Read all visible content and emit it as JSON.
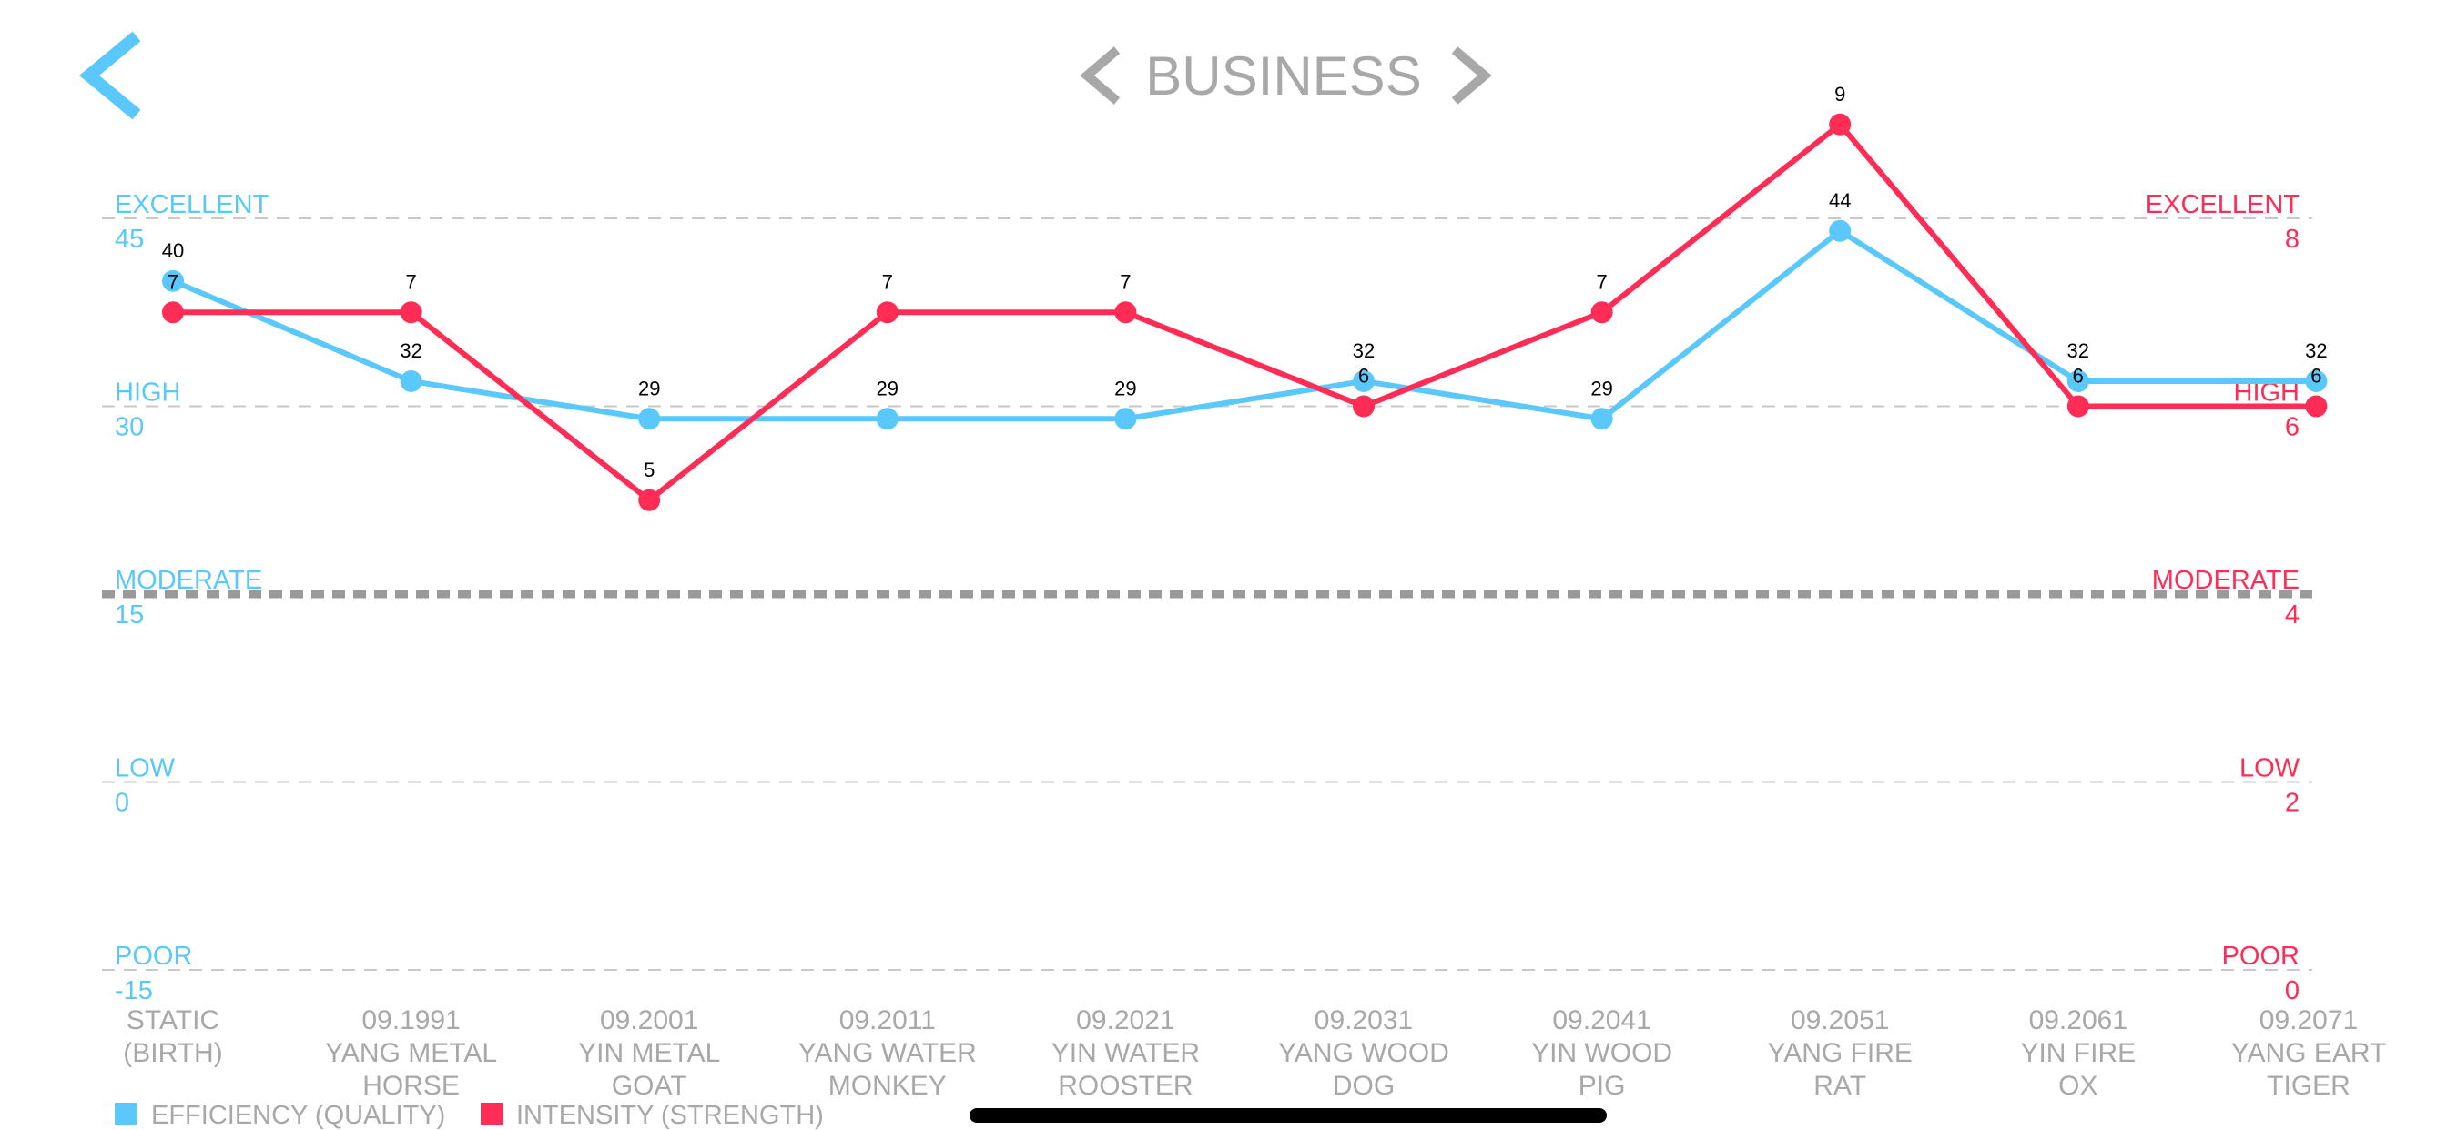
{
  "header": {
    "title": "BUSINESS",
    "back_icon": "chevron-left-icon",
    "prev_icon": "chevron-left-icon",
    "next_icon": "chevron-right-icon"
  },
  "colors": {
    "efficiency": "#5AC8FA",
    "intensity": "#FF2D55",
    "title": "#A8A8A8",
    "axis_text": "#A8A8A8",
    "grid": "#C8C8C8",
    "moderate_line": "#9A9A9A",
    "value_label": "#000000"
  },
  "legend": {
    "efficiency": "EFFICIENCY (QUALITY)",
    "intensity": "INTENSITY (STRENGTH)"
  },
  "chart_data": {
    "type": "line",
    "title": "BUSINESS",
    "categories": [
      [
        "STATIC",
        "(BIRTH)"
      ],
      [
        "09.1991",
        "YANG METAL",
        "HORSE"
      ],
      [
        "09.2001",
        "YIN METAL",
        "GOAT"
      ],
      [
        "09.2011",
        "YANG WATER",
        "MONKEY"
      ],
      [
        "09.2021",
        "YIN WATER",
        "ROOSTER"
      ],
      [
        "09.2031",
        "YANG WOOD",
        "DOG"
      ],
      [
        "09.2041",
        "YIN WOOD",
        "PIG"
      ],
      [
        "09.2051",
        "YANG FIRE",
        "RAT"
      ],
      [
        "09.2061",
        "YIN FIRE",
        "OX"
      ],
      [
        "09.2071",
        "YANG EART",
        "TIGER"
      ]
    ],
    "series": [
      {
        "name": "EFFICIENCY (QUALITY)",
        "axis": "left",
        "values": [
          40,
          32,
          29,
          29,
          29,
          32,
          29,
          44,
          32,
          32
        ]
      },
      {
        "name": "INTENSITY (STRENGTH)",
        "axis": "right",
        "values": [
          7,
          7,
          5,
          7,
          7,
          6,
          7,
          9,
          6,
          6
        ]
      }
    ],
    "left_axis": {
      "ylim": [
        -15,
        45
      ],
      "levels": [
        {
          "name": "EXCELLENT",
          "value": 45
        },
        {
          "name": "HIGH",
          "value": 30
        },
        {
          "name": "MODERATE",
          "value": 15
        },
        {
          "name": "LOW",
          "value": 0
        },
        {
          "name": "POOR",
          "value": -15
        }
      ]
    },
    "right_axis": {
      "ylim": [
        0,
        8
      ],
      "levels": [
        {
          "name": "EXCELLENT",
          "value": 8
        },
        {
          "name": "HIGH",
          "value": 6
        },
        {
          "name": "MODERATE",
          "value": 4
        },
        {
          "name": "LOW",
          "value": 2
        },
        {
          "name": "POOR",
          "value": 0
        }
      ]
    },
    "emphasized_level": "MODERATE",
    "grid": true,
    "legend_position": "bottom-left"
  }
}
